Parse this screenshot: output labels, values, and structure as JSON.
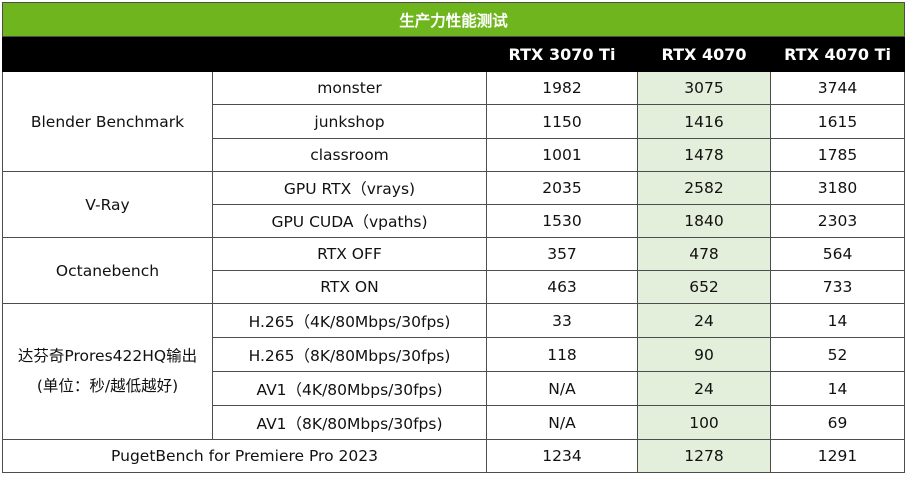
{
  "title": "生产力性能测试",
  "columns": [
    "RTX 3070 Ti",
    "RTX 4070",
    "RTX 4070 Ti"
  ],
  "colors": {
    "title_bg": "#6fb51e",
    "header_bg": "#000000",
    "highlight_bg": "#e3eedb"
  },
  "groups": [
    {
      "label": "Blender Benchmark",
      "rows": [
        {
          "test": "monster",
          "values": [
            "1982",
            "3075",
            "3744"
          ]
        },
        {
          "test": "junkshop",
          "values": [
            "1150",
            "1416",
            "1615"
          ]
        },
        {
          "test": "classroom",
          "values": [
            "1001",
            "1478",
            "1785"
          ]
        }
      ]
    },
    {
      "label": "V-Ray",
      "rows": [
        {
          "test": "GPU RTX（vrays)",
          "values": [
            "2035",
            "2582",
            "3180"
          ]
        },
        {
          "test": "GPU CUDA（vpaths)",
          "values": [
            "1530",
            "1840",
            "2303"
          ]
        }
      ]
    },
    {
      "label": "Octanebench",
      "rows": [
        {
          "test": "RTX OFF",
          "values": [
            "357",
            "478",
            "564"
          ]
        },
        {
          "test": "RTX ON",
          "values": [
            "463",
            "652",
            "733"
          ]
        }
      ]
    },
    {
      "label": "达芬奇Prores422HQ输出",
      "sublabel": "(单位：秒/越低越好)",
      "rows": [
        {
          "test": "H.265（4K/80Mbps/30fps)",
          "values": [
            "33",
            "24",
            "14"
          ]
        },
        {
          "test": "H.265（8K/80Mbps/30fps)",
          "values": [
            "118",
            "90",
            "52"
          ]
        },
        {
          "test": "AV1（4K/80Mbps/30fps)",
          "values": [
            "N/A",
            "24",
            "14"
          ]
        },
        {
          "test": "AV1（8K/80Mbps/30fps)",
          "values": [
            "N/A",
            "100",
            "69"
          ]
        }
      ]
    }
  ],
  "footer_row": {
    "label": "PugetBench for Premiere Pro 2023",
    "values": [
      "1234",
      "1278",
      "1291"
    ]
  }
}
